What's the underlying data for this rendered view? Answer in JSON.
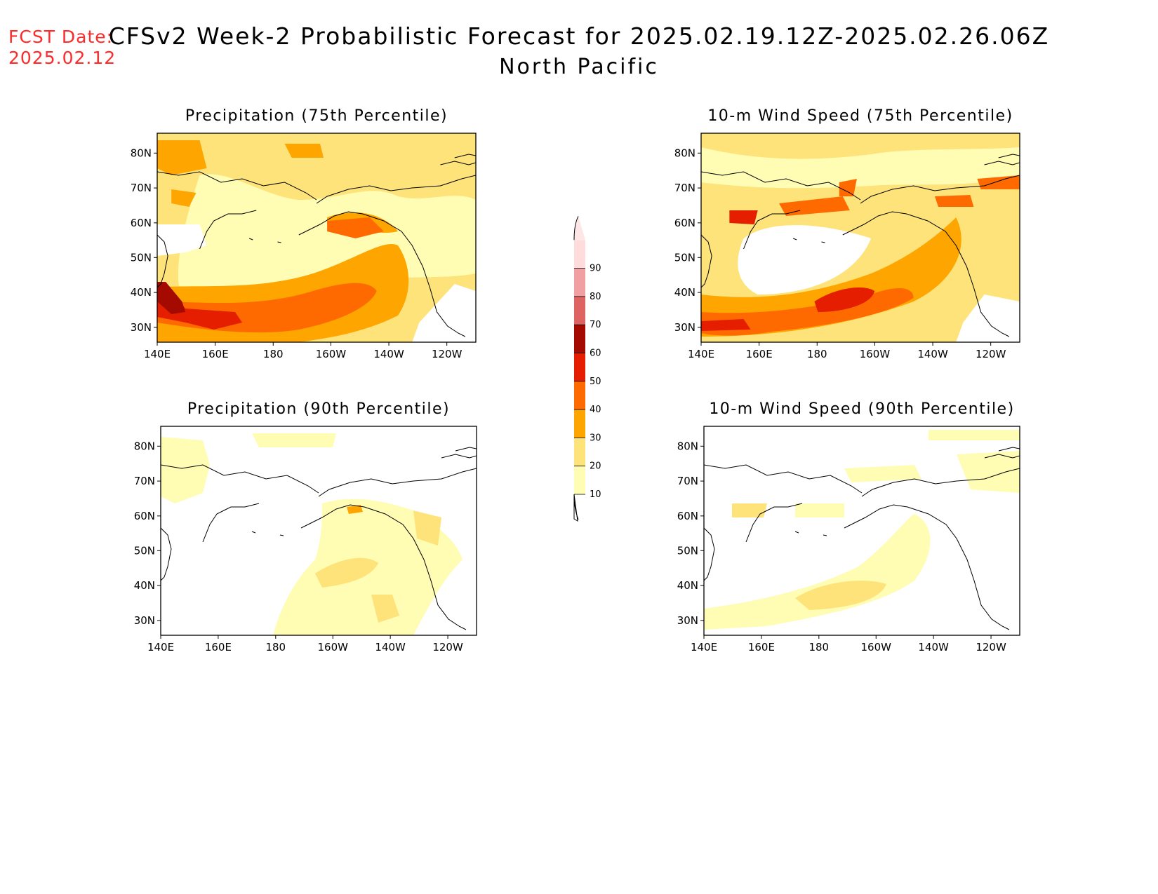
{
  "header": {
    "fcst_label": "FCST Date:",
    "fcst_date": "2025.02.12",
    "title": "CFSv2 Week-2 Probabilistic Forecast for 2025.02.19.12Z-2025.02.26.06Z",
    "region": "North Pacific"
  },
  "axes": {
    "lon_labels": [
      "140E",
      "160E",
      "180",
      "160W",
      "140W",
      "120W"
    ],
    "lat_labels": [
      "80N",
      "70N",
      "60N",
      "50N",
      "40N",
      "30N"
    ]
  },
  "panels": [
    {
      "title": "Precipitation (75th Percentile)",
      "variable": "precipitation",
      "percentile": 75
    },
    {
      "title": "10-m Wind Speed (75th Percentile)",
      "variable": "wind_speed_10m",
      "percentile": 75
    },
    {
      "title": "Precipitation (90th Percentile)",
      "variable": "precipitation",
      "percentile": 90
    },
    {
      "title": "10-m Wind Speed (90th Percentile)",
      "variable": "wind_speed_10m",
      "percentile": 90
    }
  ],
  "colorbar": {
    "levels": [
      "10",
      "20",
      "30",
      "40",
      "50",
      "60",
      "70",
      "80",
      "90"
    ],
    "colors": [
      "#fffcb4",
      "#fde37a",
      "#ffa500",
      "#ff6a00",
      "#e61e00",
      "#a50a00",
      "#de6464",
      "#f0a0a0",
      "#ffdcdc"
    ]
  },
  "chart_data": {
    "type": "map",
    "lon_range": [
      "140E",
      "110W"
    ],
    "lat_range": [
      25,
      85
    ],
    "grid": false
  }
}
